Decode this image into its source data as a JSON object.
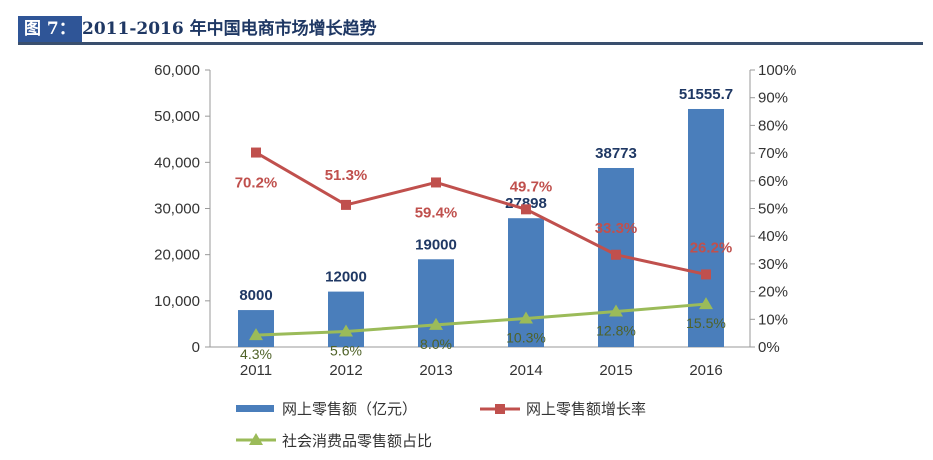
{
  "header": {
    "tag": "图 7：",
    "title": "2011-2016 年中国电商市场增长趋势"
  },
  "chart_data": {
    "type": "bar",
    "title": "2011-2016 年中国电商市场增长趋势",
    "categories": [
      "2011",
      "2012",
      "2013",
      "2014",
      "2015",
      "2016"
    ],
    "y_left": {
      "range": [
        0,
        60000
      ],
      "ticks": [
        "0",
        "10,000",
        "20,000",
        "30,000",
        "40,000",
        "50,000",
        "60,000"
      ]
    },
    "y_right": {
      "range": [
        0,
        100
      ],
      "ticks": [
        "0%",
        "10%",
        "20%",
        "30%",
        "40%",
        "50%",
        "60%",
        "70%",
        "80%",
        "90%",
        "100%"
      ]
    },
    "grid": false,
    "legend_position": "bottom",
    "series": [
      {
        "name": "网上零售额（亿元）",
        "type": "bar",
        "axis": "left",
        "color": "#4a7ebb",
        "values": [
          8000,
          12000,
          19000,
          27898,
          38773,
          51555.7
        ],
        "labels": [
          "8000",
          "12000",
          "19000",
          "27898",
          "38773",
          "51555.7"
        ]
      },
      {
        "name": "网上零售额增长率",
        "type": "line",
        "axis": "right",
        "color": "#c0504d",
        "values": [
          70.2,
          51.3,
          59.4,
          49.7,
          33.3,
          26.2
        ],
        "labels": [
          "70.2%",
          "51.3%",
          "59.4%",
          "49.7%",
          "33.3%",
          "26.2%"
        ]
      },
      {
        "name": "社会消费品零售额占比",
        "type": "line",
        "axis": "right",
        "color": "#9bbb59",
        "values": [
          4.3,
          5.6,
          8.0,
          10.3,
          12.8,
          15.5
        ],
        "labels": [
          "4.3%",
          "5.6%",
          "8.0%",
          "10.3%",
          "12.8%",
          "15.5%"
        ]
      }
    ]
  }
}
